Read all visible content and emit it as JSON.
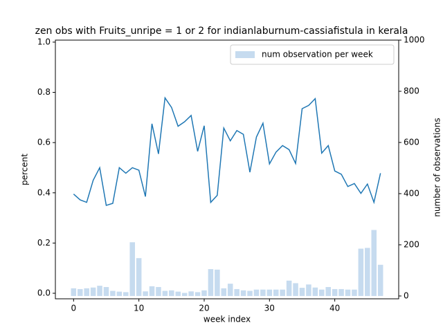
{
  "chart_data": {
    "type": "bar_line",
    "title": "zen obs with Fruits_unripe = 1 or 2 for indianlaburnum-cassiafistula in kerala",
    "xlabel": "week index",
    "ylabel": "percent",
    "y2label": "number of observations",
    "x": [
      0,
      1,
      2,
      3,
      4,
      5,
      6,
      7,
      8,
      9,
      10,
      11,
      12,
      13,
      14,
      15,
      16,
      17,
      18,
      19,
      20,
      21,
      22,
      23,
      24,
      25,
      26,
      27,
      28,
      29,
      30,
      31,
      32,
      33,
      34,
      35,
      36,
      37,
      38,
      39,
      40,
      41,
      42,
      43,
      44,
      45,
      46,
      47
    ],
    "series": [
      {
        "name": "num observation per week",
        "type": "bar",
        "axis": "y2",
        "color": "#c6dbef",
        "values": [
          30,
          27,
          30,
          33,
          40,
          35,
          20,
          17,
          15,
          210,
          148,
          18,
          38,
          35,
          20,
          22,
          17,
          12,
          18,
          15,
          22,
          105,
          103,
          30,
          48,
          27,
          22,
          20,
          25,
          25,
          25,
          25,
          25,
          60,
          50,
          32,
          45,
          33,
          25,
          35,
          27,
          27,
          25,
          25,
          185,
          188,
          258,
          122
        ]
      },
      {
        "type": "line",
        "color": "#1f77b4",
        "values": [
          0.395,
          0.372,
          0.362,
          0.45,
          0.5,
          0.35,
          0.358,
          0.5,
          0.478,
          0.5,
          0.49,
          0.385,
          0.675,
          0.555,
          0.778,
          0.74,
          0.665,
          0.683,
          0.708,
          0.565,
          0.667,
          0.362,
          0.39,
          0.658,
          0.607,
          0.648,
          0.633,
          0.482,
          0.622,
          0.677,
          0.515,
          0.562,
          0.588,
          0.572,
          0.517,
          0.735,
          0.748,
          0.775,
          0.558,
          0.588,
          0.487,
          0.474,
          0.425,
          0.437,
          0.398,
          0.435,
          0.362,
          0.478
        ]
      }
    ],
    "xlim": [
      -2.79,
      49.79
    ],
    "xticks": [
      0,
      10,
      20,
      30,
      40
    ],
    "ylim": [
      -0.022,
      1.008
    ],
    "yticks": [
      {
        "value": 0,
        "label": "0.0"
      },
      {
        "value": 0.2,
        "label": "0.2"
      },
      {
        "value": 0.4,
        "label": "0.4"
      },
      {
        "value": 0.6,
        "label": "0.6"
      },
      {
        "value": 0.8,
        "label": "0.8"
      },
      {
        "value": 1,
        "label": "1.0"
      }
    ],
    "y2lim": [
      -11,
      1000
    ],
    "y2ticks": [
      0,
      200,
      400,
      600,
      800,
      1000
    ],
    "legend": "upper right"
  }
}
